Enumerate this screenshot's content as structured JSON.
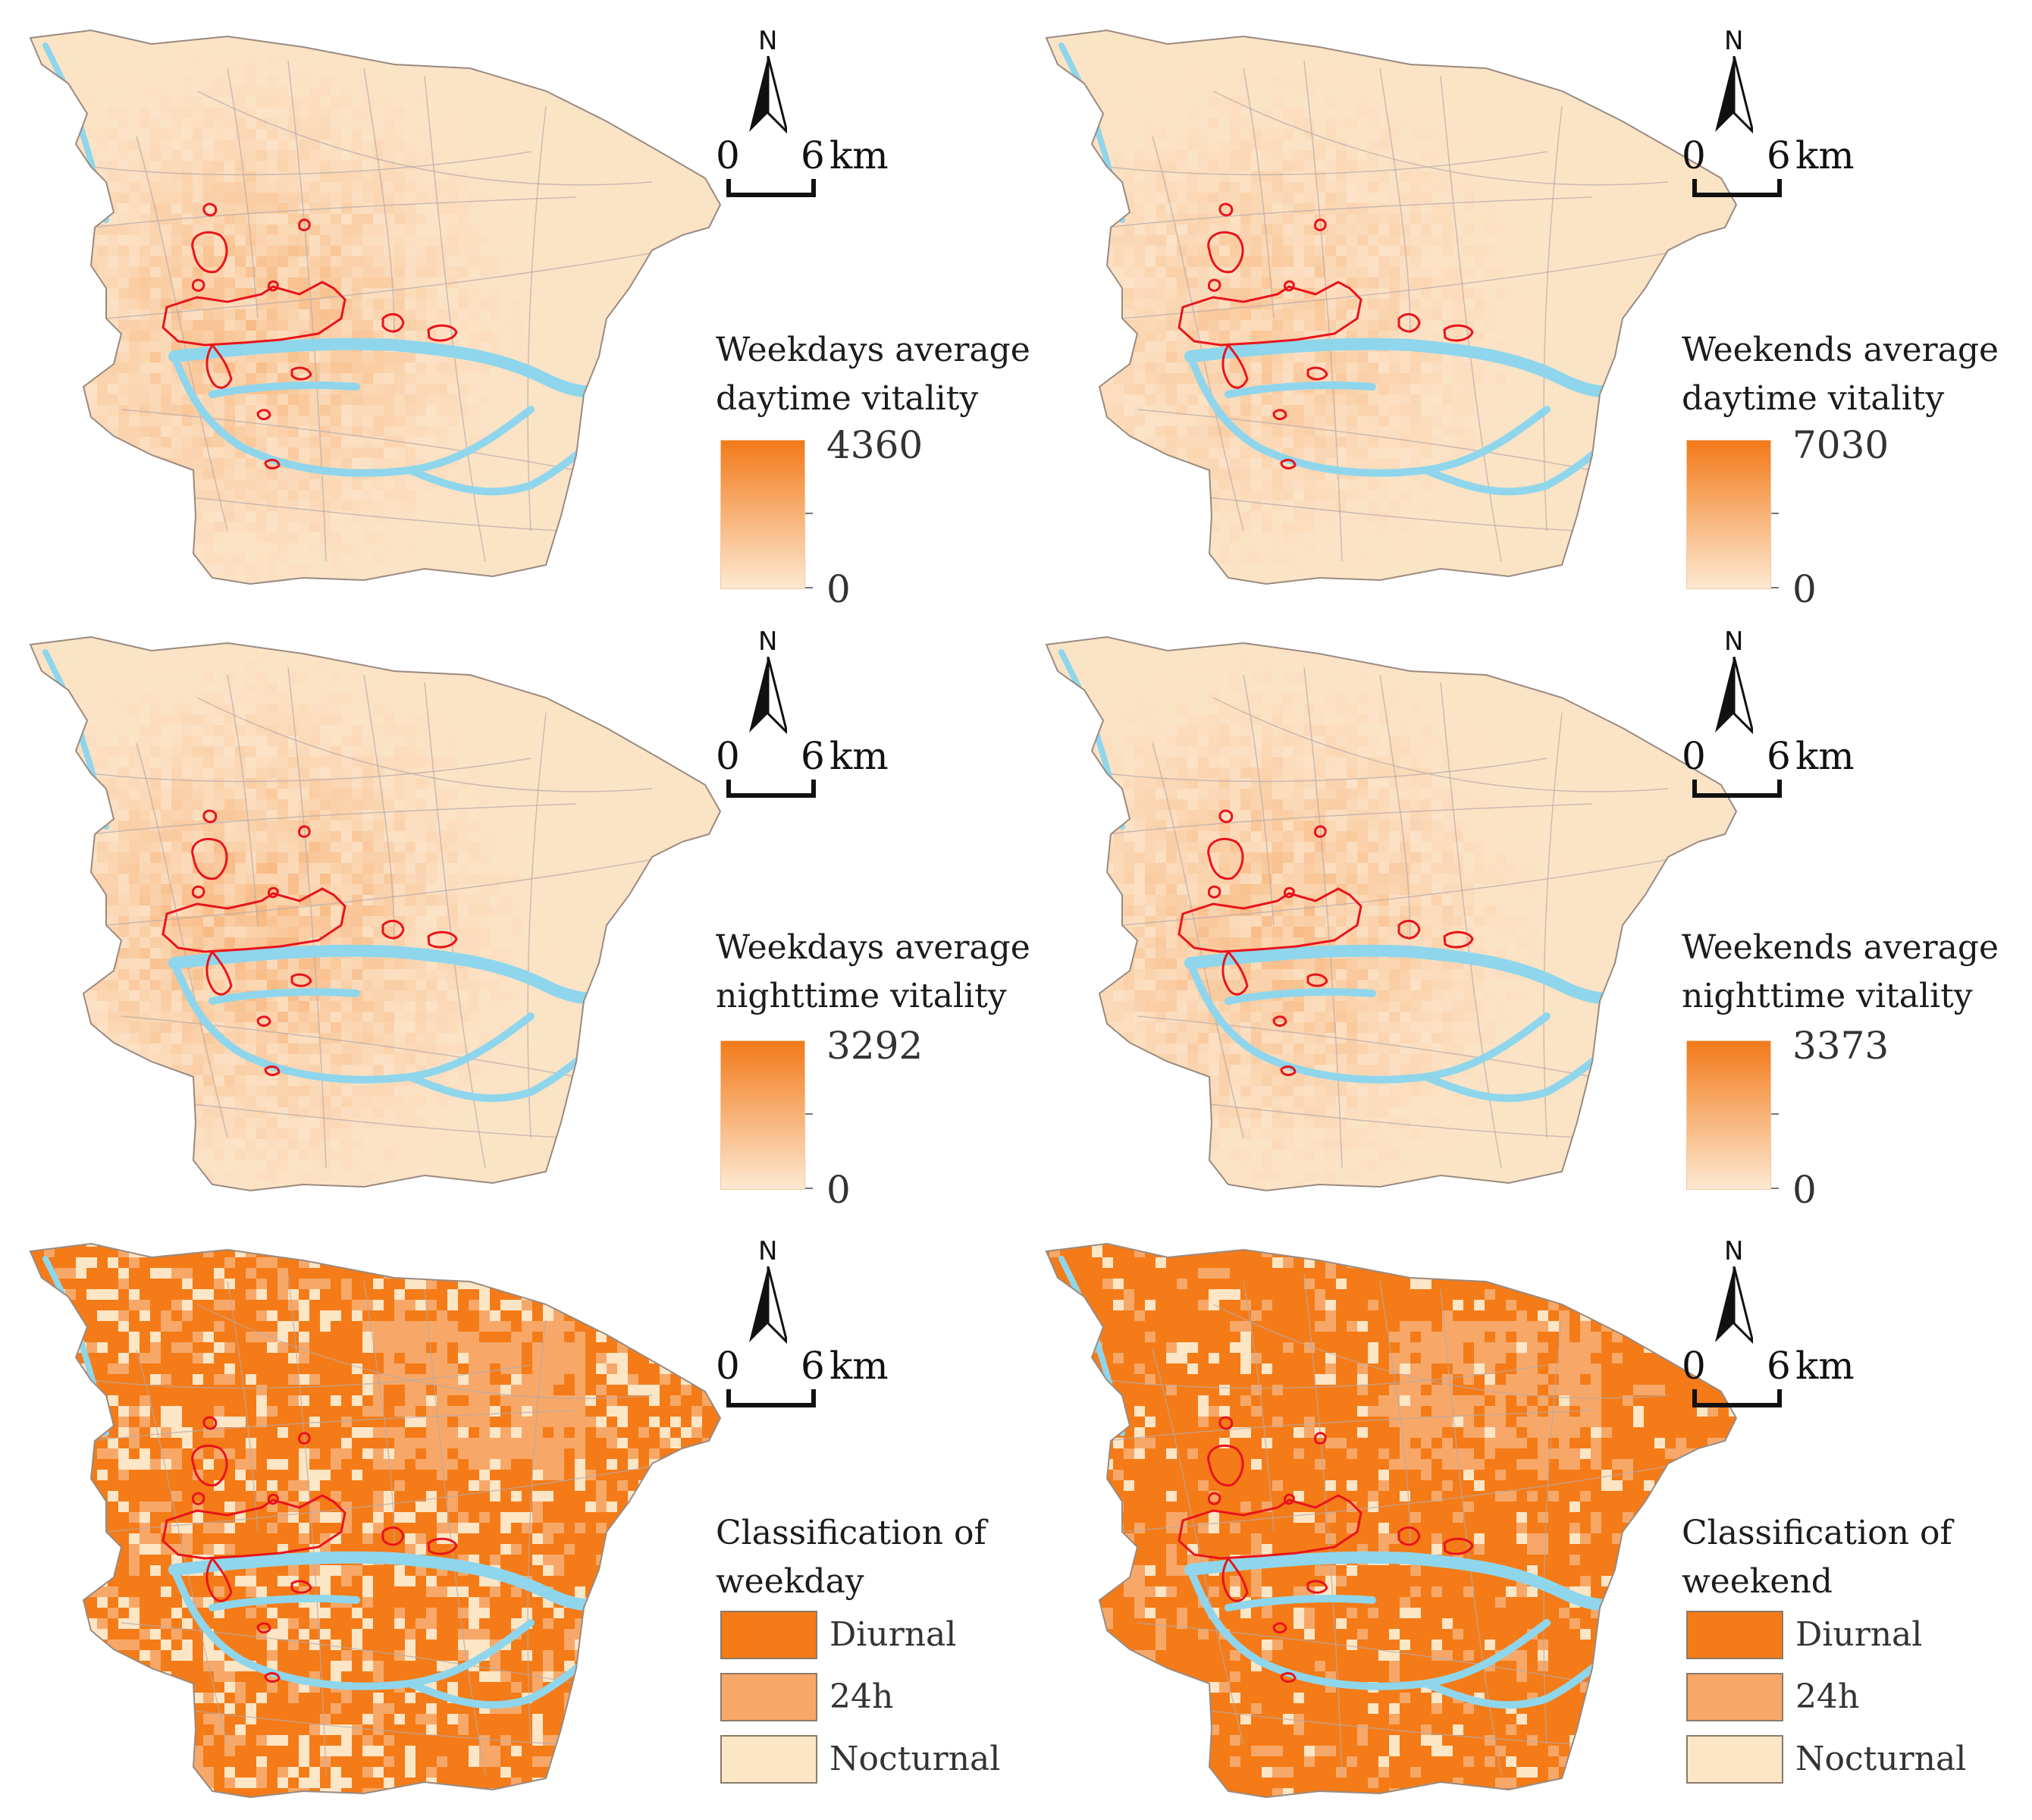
{
  "north_label": "N",
  "scale": {
    "start": "0",
    "end": "6",
    "unit": "km"
  },
  "colors": {
    "land_base": "#fbe3c6",
    "water": "#8fd6ec",
    "road": "#b7a9a9",
    "district_outline": "#9a8a80",
    "hotspot_outline": "#e8141b",
    "ramp_high": "#f27a1a",
    "ramp_low": "#fde9d2",
    "class_diurnal": "#f47b17",
    "class_24h": "#f7a868",
    "class_nocturnal": "#fde6c6"
  },
  "panels": [
    {
      "id": "weekday-day",
      "type": "continuous",
      "title_line1": "Weekdays average",
      "title_line2": "daytime vitality",
      "max": "4360",
      "min": "0",
      "intensity": 0.45
    },
    {
      "id": "weekend-day",
      "type": "continuous",
      "title_line1": "Weekends average",
      "title_line2": "daytime vitality",
      "max": "7030",
      "min": "0",
      "intensity": 0.35
    },
    {
      "id": "weekday-night",
      "type": "continuous",
      "title_line1": "Weekdays average",
      "title_line2": "nighttime vitality",
      "max": "3292",
      "min": "0",
      "intensity": 0.5
    },
    {
      "id": "weekend-night",
      "type": "continuous",
      "title_line1": "Weekends average",
      "title_line2": "nighttime vitality",
      "max": "3373",
      "min": "0",
      "intensity": 0.45
    },
    {
      "id": "weekday-class",
      "type": "classified",
      "title_line1": "Classification of",
      "title_line2": "weekday",
      "classes": [
        "Diurnal",
        "24h",
        "Nocturnal"
      ],
      "class_share": [
        0.62,
        0.18,
        0.2
      ]
    },
    {
      "id": "weekend-class",
      "type": "classified",
      "title_line1": "Classification of",
      "title_line2": "weekend",
      "classes": [
        "Diurnal",
        "24h",
        "Nocturnal"
      ],
      "class_share": [
        0.78,
        0.14,
        0.08
      ]
    }
  ]
}
